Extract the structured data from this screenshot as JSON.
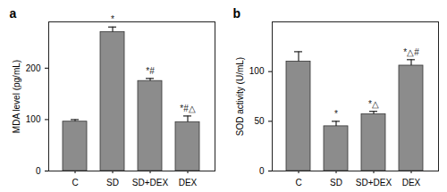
{
  "chart_data": [
    {
      "type": "bar",
      "title": "a",
      "y_label": "MDA level (pg/mL)",
      "categories": [
        "C",
        "SD",
        "SD+DEX",
        "DEX"
      ],
      "values": [
        96,
        270,
        175,
        95
      ],
      "errors": [
        4,
        10,
        5,
        12
      ],
      "annotations": [
        null,
        "*",
        "*#",
        "*#△"
      ],
      "color": "#8c8c8c",
      "ylim": [
        0,
        290
      ],
      "yticks": [
        0,
        100,
        200
      ],
      "grid": false
    },
    {
      "type": "bar",
      "title": "b",
      "y_label": "SOD activity (U/mL)",
      "categories": [
        "C",
        "SD",
        "SD+DEX",
        "DEX"
      ],
      "values": [
        110,
        45,
        57,
        106
      ],
      "errors": [
        10,
        5,
        3,
        6
      ],
      "annotations": [
        null,
        "*",
        "*△",
        "*△#"
      ],
      "color": "#8c8c8c",
      "ylim": [
        0,
        150
      ],
      "yticks": [
        0,
        50,
        100
      ],
      "grid": false
    }
  ]
}
